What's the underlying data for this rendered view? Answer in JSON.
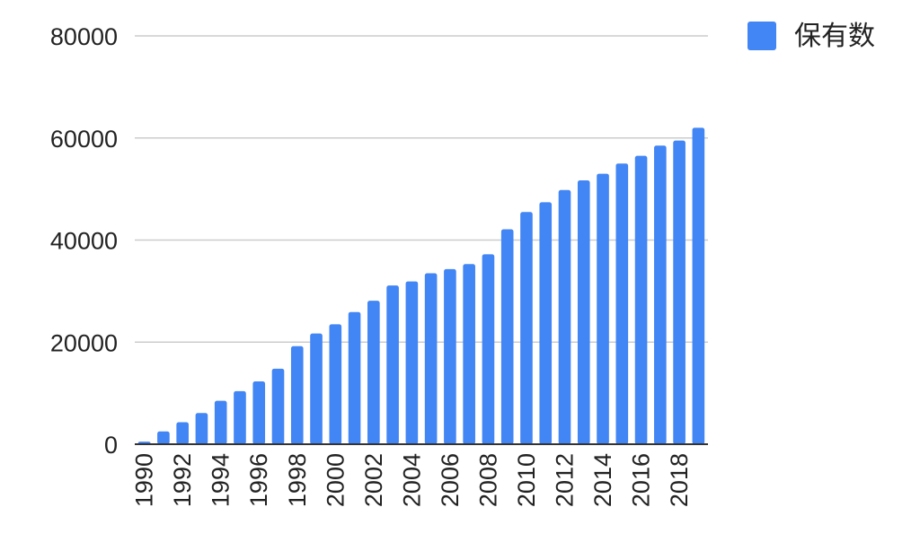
{
  "chart_data": {
    "type": "bar",
    "title": "",
    "xlabel": "",
    "ylabel": "",
    "ylim": [
      0,
      80000
    ],
    "y_ticks": [
      0,
      20000,
      40000,
      60000,
      80000
    ],
    "grid": true,
    "legend_position": "top-right",
    "bar_color": "#4285f4",
    "categories": [
      "1990",
      "1991",
      "1992",
      "1993",
      "1994",
      "1995",
      "1996",
      "1997",
      "1998",
      "1999",
      "2000",
      "2001",
      "2002",
      "2003",
      "2004",
      "2005",
      "2006",
      "2007",
      "2008",
      "2009",
      "2010",
      "2011",
      "2012",
      "2013",
      "2014",
      "2015",
      "2016",
      "2017",
      "2018",
      "2019"
    ],
    "x_tick_labels": [
      "1990",
      "1992",
      "1994",
      "1996",
      "1998",
      "2000",
      "2002",
      "2004",
      "2006",
      "2008",
      "2010",
      "2012",
      "2014",
      "2016",
      "2018"
    ],
    "series": [
      {
        "name": "保有数",
        "values": [
          500,
          2500,
          4300,
          6100,
          8500,
          10400,
          12300,
          14800,
          19200,
          21700,
          23500,
          25900,
          28100,
          31100,
          31900,
          33500,
          34300,
          35300,
          37200,
          42100,
          45500,
          47400,
          49800,
          51700,
          53000,
          55000,
          56500,
          58500,
          59500,
          62000
        ]
      }
    ]
  }
}
